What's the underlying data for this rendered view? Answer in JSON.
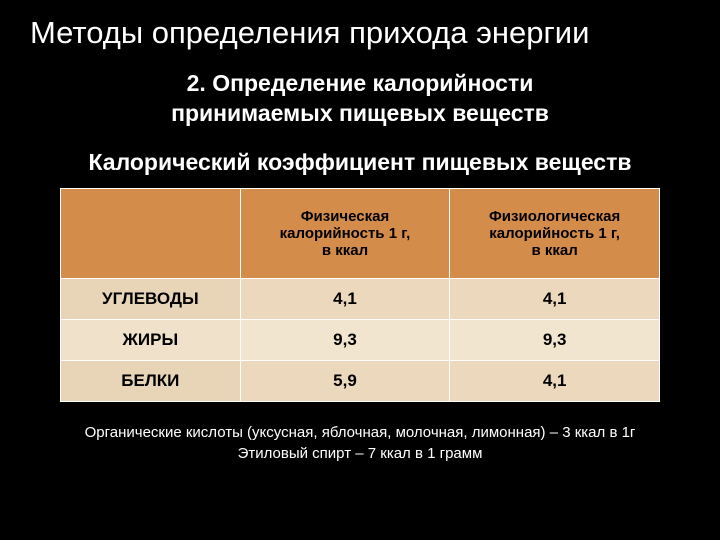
{
  "title": "Методы определения прихода энергии",
  "subtitle_line1": "2. Определение калорийности",
  "subtitle_line2": "принимаемых пищевых веществ",
  "table_title": "Калорический коэффициент пищевых веществ",
  "table": {
    "headers": {
      "empty": "",
      "col1_line1": "Физическая",
      "col1_line2": "калорийность 1 г,",
      "col1_line3": "в ккал",
      "col2_line1": "Физиологическая",
      "col2_line2": "калорийность 1 г,",
      "col2_line3": "в ккал"
    },
    "rows": [
      {
        "label": "УГЛЕВОДЫ",
        "physical": "4,1",
        "physiological": "4,1"
      },
      {
        "label": "ЖИРЫ",
        "physical": "9,3",
        "physiological": "9,3"
      },
      {
        "label": "БЕЛКИ",
        "physical": "5,9",
        "physiological": "4,1"
      }
    ]
  },
  "footnote_line1": "Органические кислоты (уксусная, яблочная, молочная, лимонная) – 3 ккал в 1г",
  "footnote_line2": "Этиловый спирт – 7 ккал в 1 грамм",
  "colors": {
    "background": "#000000",
    "text": "#ffffff",
    "header_bg": "#d38c4a",
    "row_odd_bg": "#ecd9bd",
    "row_even_bg": "#f2e5cf",
    "row_header_odd": "#e8d5b8",
    "row_header_even": "#f0e2ca",
    "border": "#ffffff"
  },
  "fonts": {
    "title_size": 31,
    "subtitle_size": 23,
    "table_title_size": 23,
    "header_size": 15,
    "cell_size": 17,
    "footnote_size": 15
  }
}
